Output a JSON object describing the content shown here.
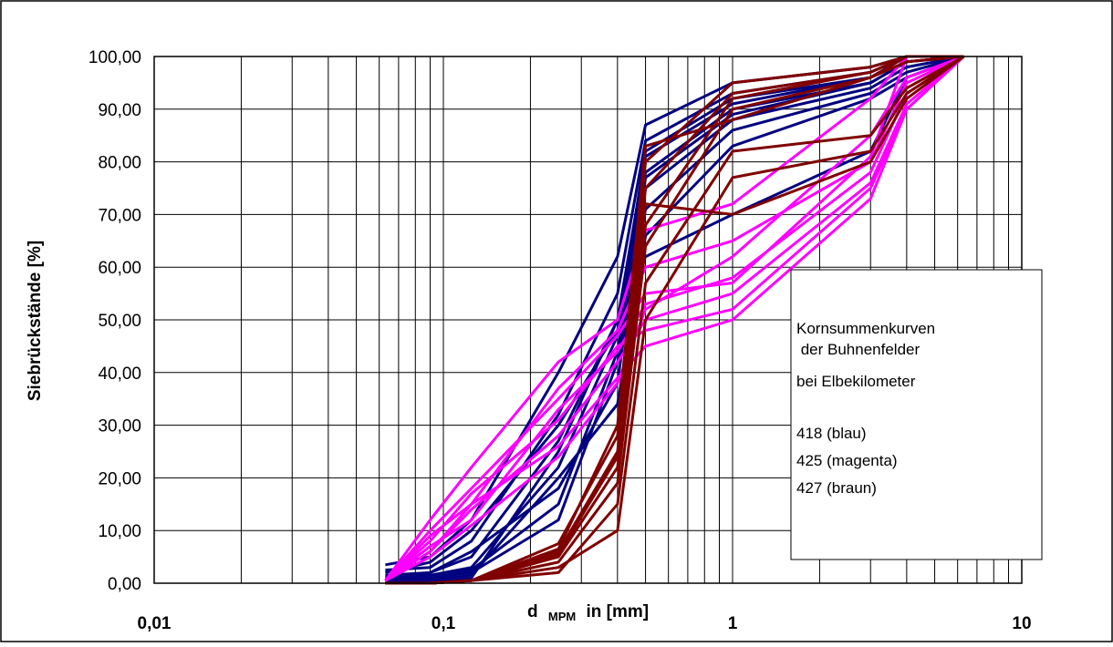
{
  "chart_data": {
    "type": "line",
    "xscale": "log",
    "xlim": [
      0.01,
      10
    ],
    "ylim": [
      0,
      100
    ],
    "grid": true,
    "y_ticks": [
      "0,00",
      "10,00",
      "20,00",
      "30,00",
      "40,00",
      "50,00",
      "60,00",
      "70,00",
      "80,00",
      "90,00",
      "100,00"
    ],
    "x_ticks": [
      "0,01",
      "0,1",
      "1",
      "10"
    ],
    "ylabel": "Siebrückstände [%]",
    "xlabel_parts": {
      "prefix": "d",
      "subscript": "MPM",
      "suffix": "in [mm]"
    },
    "legend": {
      "placement": "right",
      "lines": [
        "Kornsummenkurven",
        " der Buhnenfelder",
        "bei Elbekilometer",
        "",
        "418 (blau)",
        "425 (magenta)",
        "427 (braun)"
      ]
    },
    "x": [
      0.063,
      0.09,
      0.125,
      0.25,
      0.4,
      0.5,
      1,
      3,
      4,
      6.3
    ],
    "series_groups": [
      {
        "color": "#000080",
        "series": [
          {
            "values": [
              3.5,
              5,
              12,
              40,
              62,
              87,
              95,
              98,
              100,
              100
            ]
          },
          {
            "values": [
              2.5,
              3,
              8,
              32,
              55,
              84,
              93,
              97,
              100,
              100
            ]
          },
          {
            "values": [
              1.5,
              2,
              5,
              27,
              50,
              81,
              91,
              96,
              100,
              100
            ]
          },
          {
            "values": [
              1,
              1.5,
              3,
              22,
              47,
              78,
              90,
              95,
              99,
              100
            ]
          },
          {
            "values": [
              1,
              1,
              2.5,
              15,
              44,
              75,
              88,
              94,
              98,
              100
            ]
          },
          {
            "values": [
              0.5,
              1,
              2,
              12,
              42,
              71,
              86,
              93,
              97,
              100
            ]
          },
          {
            "values": [
              0.5,
              0.5,
              1.5,
              20,
              34,
              66,
              83,
              92,
              96,
              100
            ]
          },
          {
            "values": [
              0.5,
              0.5,
              1,
              25,
              50,
              62,
              70,
              82,
              96,
              100
            ]
          },
          {
            "values": [
              2,
              4,
              10,
              30,
              48,
              82,
              92,
              96,
              100,
              100
            ]
          },
          {
            "values": [
              1,
              2,
              6,
              18,
              38,
              77,
              89,
              95,
              99,
              100
            ]
          }
        ]
      },
      {
        "color": "#FF00FF",
        "series": [
          {
            "values": [
              0.5,
              12,
              22,
              42,
              50,
              67,
              72,
              92,
              100,
              100
            ]
          },
          {
            "values": [
              0.5,
              9,
              15,
              37,
              48,
              60,
              65,
              80,
              95,
              100
            ]
          },
          {
            "values": [
              0.5,
              7,
              12,
              33,
              44,
              53,
              58,
              78,
              93,
              100
            ]
          },
          {
            "values": [
              0.5,
              6,
              14,
              28,
              42,
              50,
              55,
              76,
              91,
              100
            ]
          },
          {
            "values": [
              0.5,
              8,
              17,
              31,
              45,
              48,
              52,
              75,
              90,
              100
            ]
          },
          {
            "values": [
              0.5,
              6,
              15,
              26,
              39,
              45,
              50,
              73,
              90,
              100
            ]
          },
          {
            "values": [
              0.5,
              10,
              18,
              35,
              47,
              55,
              57,
              81,
              100,
              100
            ]
          },
          {
            "values": [
              0.5,
              5,
              11,
              24,
              38,
              52,
              62,
              85,
              96,
              100
            ]
          }
        ]
      },
      {
        "color": "#800000",
        "series": [
          {
            "values": [
              0,
              0,
              0.5,
              7.5,
              28,
              80,
              95,
              98,
              100,
              100
            ]
          },
          {
            "values": [
              0,
              0,
              0.5,
              6,
              25,
              75,
              93,
              97,
              100,
              100
            ]
          },
          {
            "values": [
              0,
              0,
              0.5,
              5,
              22,
              68,
              92,
              97,
              100,
              100
            ]
          },
          {
            "values": [
              0,
              0,
              0.5,
              4,
              19,
              64,
              90,
              96,
              99,
              100
            ]
          },
          {
            "values": [
              0,
              0,
              0.5,
              2,
              15,
              57,
              82,
              85,
              94,
              100
            ]
          },
          {
            "values": [
              0,
              0,
              0.5,
              3,
              10,
              50,
              77,
              82,
              93,
              100
            ]
          },
          {
            "values": [
              0,
              0,
              0.5,
              5.5,
              24,
              72,
              70,
              80,
              92,
              100
            ]
          },
          {
            "values": [
              0,
              0,
              0.5,
              6.5,
              30,
              83,
              88,
              96,
              100,
              100
            ]
          }
        ]
      }
    ]
  }
}
